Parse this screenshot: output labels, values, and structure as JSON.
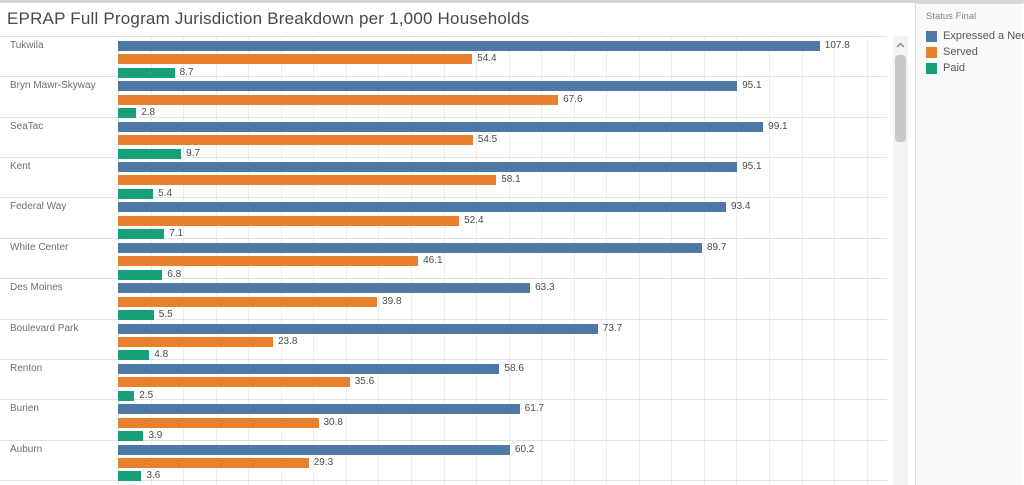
{
  "title": "EPRAP Full Program Jurisdiction Breakdown per 1,000 Households",
  "legend": {
    "title": "Status Final",
    "items": [
      {
        "label": "Expressed a Need",
        "color": "#4e79a7"
      },
      {
        "label": "Served",
        "color": "#e9802d"
      },
      {
        "label": "Paid",
        "color": "#17a077"
      }
    ]
  },
  "chart_data": {
    "type": "bar",
    "orientation": "horizontal",
    "title": "EPRAP Full Program Jurisdiction Breakdown per 1,000 Households",
    "categories": [
      "Tukwila",
      "Bryn Mawr-Skyway",
      "SeaTac",
      "Kent",
      "Federal Way",
      "White Center",
      "Des Moines",
      "Boulevard Park",
      "Renton",
      "Burien",
      "Auburn"
    ],
    "series": [
      {
        "name": "Expressed a Need",
        "color": "#4e79a7",
        "values": [
          107.8,
          95.1,
          99.1,
          95.1,
          93.4,
          89.7,
          63.3,
          73.7,
          58.6,
          61.7,
          60.2
        ]
      },
      {
        "name": "Served",
        "color": "#e9802d",
        "values": [
          54.4,
          67.6,
          54.5,
          58.1,
          52.4,
          46.1,
          39.8,
          23.8,
          35.6,
          30.8,
          29.3
        ]
      },
      {
        "name": "Paid",
        "color": "#17a077",
        "values": [
          8.7,
          2.8,
          9.7,
          5.4,
          7.1,
          6.8,
          5.5,
          4.8,
          2.5,
          3.9,
          3.6
        ]
      }
    ],
    "xlim": [
      0,
      118
    ],
    "gridline_step": 5,
    "value_labels": true,
    "legend_title": "Status Final",
    "legend_position": "top-right"
  }
}
